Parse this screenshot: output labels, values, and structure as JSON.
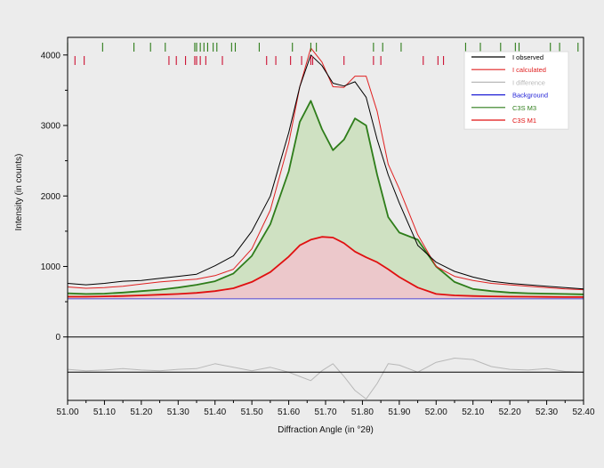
{
  "chart_data": {
    "type": "line",
    "xlabel": "Diffraction Angle  (in °2θ)",
    "ylabel": "Intensity (in counts)",
    "xlim": [
      51.0,
      52.4
    ],
    "ylim": [
      -900,
      4250
    ],
    "x_ticks": [
      "51.00",
      "51.10",
      "51.20",
      "51.30",
      "51.40",
      "51.50",
      "51.60",
      "51.70",
      "51.80",
      "51.90",
      "52.00",
      "52.10",
      "52.20",
      "52.30",
      "52.40"
    ],
    "y_ticks": [
      "0",
      "1000",
      "2000",
      "3000",
      "4000"
    ],
    "grid": false,
    "legend_position": "top-right",
    "series": [
      {
        "name": "I observed",
        "color": "#000000",
        "x": [
          51.0,
          51.05,
          51.1,
          51.15,
          51.2,
          51.25,
          51.3,
          51.35,
          51.4,
          51.45,
          51.5,
          51.55,
          51.6,
          51.63,
          51.66,
          51.69,
          51.72,
          51.75,
          51.78,
          51.81,
          51.84,
          51.87,
          51.9,
          51.95,
          52.0,
          52.05,
          52.1,
          52.15,
          52.2,
          52.25,
          52.3,
          52.35,
          52.4
        ],
        "y": [
          760,
          740,
          760,
          790,
          800,
          830,
          860,
          890,
          1010,
          1150,
          1500,
          2000,
          2900,
          3550,
          4000,
          3850,
          3600,
          3560,
          3620,
          3400,
          2800,
          2300,
          1900,
          1300,
          1060,
          930,
          850,
          790,
          760,
          740,
          720,
          700,
          680
        ]
      },
      {
        "name": "I calculated",
        "color": "#e02020",
        "x": [
          51.0,
          51.05,
          51.1,
          51.15,
          51.2,
          51.25,
          51.3,
          51.35,
          51.4,
          51.45,
          51.5,
          51.55,
          51.6,
          51.63,
          51.66,
          51.69,
          51.72,
          51.75,
          51.78,
          51.81,
          51.84,
          51.87,
          51.9,
          51.95,
          52.0,
          52.05,
          52.1,
          52.15,
          52.2,
          52.25,
          52.3,
          52.35,
          52.4
        ],
        "y": [
          710,
          690,
          700,
          720,
          750,
          780,
          800,
          820,
          870,
          960,
          1250,
          1800,
          2750,
          3550,
          4100,
          3900,
          3550,
          3540,
          3700,
          3700,
          3200,
          2450,
          2100,
          1450,
          1000,
          860,
          800,
          760,
          740,
          720,
          700,
          680,
          670
        ]
      },
      {
        "name": "I difference",
        "color": "#b8b8b8",
        "x": [
          51.0,
          51.05,
          51.1,
          51.15,
          51.2,
          51.25,
          51.3,
          51.35,
          51.4,
          51.45,
          51.5,
          51.55,
          51.6,
          51.63,
          51.66,
          51.69,
          51.72,
          51.75,
          51.78,
          51.81,
          51.84,
          51.87,
          51.9,
          51.95,
          52.0,
          52.05,
          52.1,
          52.15,
          52.2,
          52.25,
          52.3,
          52.35,
          52.4
        ],
        "y": [
          -460,
          -480,
          -470,
          -450,
          -470,
          -480,
          -460,
          -450,
          -380,
          -430,
          -480,
          -430,
          -500,
          -560,
          -620,
          -480,
          -380,
          -560,
          -760,
          -880,
          -660,
          -380,
          -400,
          -500,
          -360,
          -300,
          -320,
          -420,
          -460,
          -470,
          -450,
          -490,
          -500
        ]
      },
      {
        "name": "Background",
        "color": "#1f1fd6",
        "x": [
          51.0,
          52.4
        ],
        "y": [
          540,
          540
        ]
      },
      {
        "name": "C3S M3",
        "color": "#2e7d1a",
        "x": [
          51.0,
          51.05,
          51.1,
          51.15,
          51.2,
          51.25,
          51.3,
          51.35,
          51.4,
          51.45,
          51.5,
          51.55,
          51.6,
          51.63,
          51.66,
          51.69,
          51.72,
          51.75,
          51.78,
          51.81,
          51.84,
          51.87,
          51.9,
          51.95,
          52.0,
          52.05,
          52.1,
          52.15,
          52.2,
          52.25,
          52.3,
          52.35,
          52.4
        ],
        "y": [
          620,
          610,
          615,
          630,
          650,
          670,
          700,
          740,
          790,
          900,
          1150,
          1600,
          2350,
          3050,
          3350,
          2950,
          2650,
          2800,
          3100,
          3000,
          2300,
          1700,
          1480,
          1380,
          1000,
          780,
          680,
          650,
          630,
          620,
          615,
          610,
          605
        ]
      },
      {
        "name": "C3S M1",
        "color": "#e01010",
        "x": [
          51.0,
          51.05,
          51.1,
          51.15,
          51.2,
          51.25,
          51.3,
          51.35,
          51.4,
          51.45,
          51.5,
          51.55,
          51.6,
          51.63,
          51.66,
          51.69,
          51.72,
          51.75,
          51.78,
          51.81,
          51.84,
          51.87,
          51.9,
          51.95,
          52.0,
          52.05,
          52.1,
          52.15,
          52.2,
          52.25,
          52.3,
          52.35,
          52.4
        ],
        "y": [
          570,
          570,
          575,
          580,
          590,
          600,
          610,
          625,
          650,
          690,
          780,
          920,
          1140,
          1300,
          1380,
          1420,
          1410,
          1330,
          1210,
          1130,
          1060,
          960,
          850,
          700,
          610,
          590,
          580,
          575,
          572,
          570,
          568,
          566,
          565
        ]
      }
    ],
    "reflection_ticks": [
      {
        "name": "C3S M3",
        "color": "#2e7d1a",
        "x": [
          51.0,
          51.095,
          51.18,
          51.225,
          51.265,
          51.345,
          51.35,
          51.36,
          51.37,
          51.38,
          51.395,
          51.405,
          51.445,
          51.455,
          51.52,
          51.61,
          51.66,
          51.675,
          51.83,
          51.855,
          51.905,
          52.08,
          52.12,
          52.175,
          52.215,
          52.225,
          52.31,
          52.335,
          52.385
        ]
      },
      {
        "name": "C3S M1",
        "color": "#cc1133",
        "x": [
          51.02,
          51.045,
          51.275,
          51.295,
          51.32,
          51.345,
          51.35,
          51.36,
          51.375,
          51.42,
          51.54,
          51.565,
          51.605,
          51.635,
          51.66,
          51.665,
          51.75,
          51.83,
          51.85,
          51.965,
          52.005,
          52.02,
          52.17,
          52.2,
          52.215
        ]
      }
    ]
  }
}
